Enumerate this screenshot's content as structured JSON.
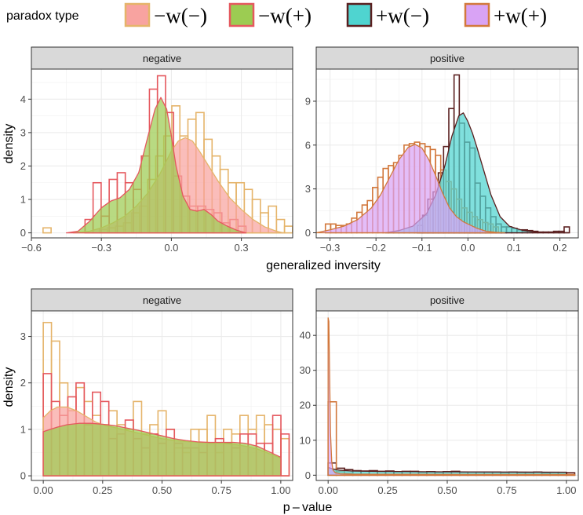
{
  "legend": {
    "title": "paradox type",
    "items": [
      {
        "label": "−w(−)",
        "fill": "#f8a3a0",
        "stroke": "#e5b46a"
      },
      {
        "label": "−w(+)",
        "fill": "#9ccc52",
        "stroke": "#e5585e"
      },
      {
        "label": "+w(−)",
        "fill": "#4fd4d0",
        "stroke": "#5a1f1f"
      },
      {
        "label": "+w(+)",
        "fill": "#d9a3f5",
        "stroke": "#d2783c"
      }
    ]
  },
  "axes": {
    "top_xlabel": "generalized inversity",
    "bottom_xlabel": "p – value",
    "ylabel": "density"
  },
  "chart_data": [
    {
      "type": "histogram+density",
      "panel": "negative",
      "row": "generalized inversity",
      "xlim": [
        -0.6,
        0.52
      ],
      "ylim": [
        -0.15,
        4.9
      ],
      "xticks": [
        -0.6,
        -0.3,
        0.0,
        0.3
      ],
      "xtick_labels": [
        "−0.6",
        "−0.3",
        "0.0",
        "0.3"
      ],
      "yticks": [
        0,
        1,
        2,
        3,
        4
      ],
      "xgrid_minor": [
        -0.45,
        -0.15,
        0.15,
        0.45
      ],
      "ygrid_minor": [
        0.5,
        1.5,
        2.5,
        3.5,
        4.5
      ],
      "series": [
        {
          "name": "−w(−)",
          "fill": "#f8a3a0",
          "stroke": "#e5b46a",
          "density_fill": "#f8a3a0",
          "bin_start": -0.55,
          "bin_width": 0.0345,
          "hist": [
            0.15,
            0,
            0,
            0,
            0,
            0,
            0,
            0.1,
            0.15,
            0.2,
            0.3,
            0.6,
            0.8,
            1.6,
            2.3,
            2.9,
            3.8,
            2.9,
            3.4,
            3.6,
            2.8,
            2.3,
            1.9,
            1.5,
            1.5,
            1.3,
            1.0,
            0.6,
            0.8,
            0.4,
            0.2,
            0.1,
            0.15
          ],
          "density_x": [
            -0.42,
            -0.35,
            -0.3,
            -0.25,
            -0.2,
            -0.15,
            -0.1,
            -0.05,
            0.0,
            0.03,
            0.06,
            0.09,
            0.12,
            0.16,
            0.2,
            0.25,
            0.3,
            0.35,
            0.4,
            0.45,
            0.48
          ],
          "density_y": [
            0,
            0.05,
            0.15,
            0.3,
            0.5,
            0.8,
            1.2,
            1.75,
            2.45,
            2.75,
            2.85,
            2.75,
            2.45,
            2.0,
            1.55,
            1.05,
            0.7,
            0.4,
            0.18,
            0.05,
            0
          ]
        },
        {
          "name": "−w(+)",
          "fill": "#9ccc52",
          "stroke": "#e5585e",
          "density_fill": "#9ccc52",
          "bin_start": -0.37,
          "bin_width": 0.0345,
          "hist": [
            0.4,
            1.5,
            0.5,
            1.6,
            1.8,
            1.5,
            1.3,
            2.3,
            4.3,
            4.7,
            3.6,
            1.7,
            1.1,
            0.8,
            0.8,
            0.7,
            0.6,
            0.3,
            0.4,
            0.2
          ],
          "density_x": [
            -0.45,
            -0.4,
            -0.35,
            -0.3,
            -0.26,
            -0.22,
            -0.18,
            -0.14,
            -0.1,
            -0.07,
            -0.045,
            -0.02,
            0.0,
            0.02,
            0.05,
            0.08,
            0.11,
            0.14,
            0.17,
            0.2,
            0.24,
            0.28,
            0.32
          ],
          "density_y": [
            0,
            0.05,
            0.35,
            0.75,
            0.95,
            1.05,
            1.3,
            1.8,
            2.9,
            3.7,
            4.05,
            3.7,
            2.9,
            2.0,
            1.1,
            0.7,
            0.65,
            0.7,
            0.55,
            0.35,
            0.2,
            0.08,
            0
          ]
        }
      ]
    },
    {
      "type": "histogram+density",
      "panel": "positive",
      "row": "generalized inversity",
      "xlim": [
        -0.33,
        0.24
      ],
      "ylim": [
        -0.35,
        11.2
      ],
      "xticks": [
        -0.3,
        -0.2,
        -0.1,
        0.0,
        0.1,
        0.2
      ],
      "xtick_labels": [
        "−0.3",
        "−0.2",
        "−0.1",
        "0.0",
        "0.1",
        "0.2"
      ],
      "yticks": [
        0,
        3,
        6,
        9
      ],
      "xgrid_minor": [
        -0.25,
        -0.15,
        -0.05,
        0.05,
        0.15
      ],
      "ygrid_minor": [
        1.5,
        4.5,
        7.5,
        10.5
      ],
      "series": [
        {
          "name": "+w(−)",
          "fill": "#4fd4d0",
          "stroke": "#5a1f1f",
          "density_fill": "#4fd4d0",
          "bin_start": -0.11,
          "bin_width": 0.0114,
          "hist": [
            0.5,
            1.2,
            2.3,
            2.8,
            4.1,
            5.9,
            8.5,
            10.8,
            7.5,
            6.2,
            5.8,
            3.4,
            2.5,
            1.7,
            1.1,
            0.6,
            0.4,
            0.4,
            0.3,
            0.2,
            0.2,
            0.15,
            0.1,
            0.05,
            0.05,
            0.05,
            0.1,
            0.1,
            0.4
          ],
          "density_x": [
            -0.18,
            -0.15,
            -0.12,
            -0.09,
            -0.07,
            -0.05,
            -0.035,
            -0.02,
            -0.01,
            0.0,
            0.01,
            0.02,
            0.035,
            0.05,
            0.07,
            0.09,
            0.12,
            0.15,
            0.18,
            0.22
          ],
          "density_y": [
            0,
            0.15,
            0.45,
            1.3,
            2.6,
            4.6,
            6.6,
            8.0,
            8.2,
            7.6,
            6.8,
            5.8,
            4.2,
            2.6,
            1.1,
            0.45,
            0.15,
            0.05,
            0.02,
            0
          ]
        },
        {
          "name": "+w(+)",
          "fill": "#d9a3f5",
          "stroke": "#d2783c",
          "density_fill": "#d9a3f5",
          "bin_start": -0.31,
          "bin_width": 0.0114,
          "hist": [
            0.6,
            0.6,
            0.5,
            0.5,
            0.6,
            1.0,
            1.4,
            1.9,
            2.2,
            3.1,
            3.8,
            4.4,
            4.6,
            4.8,
            5.3,
            6.0,
            6.1,
            6.2,
            6.1,
            5.9,
            5.7,
            5.3,
            4.3,
            3.5,
            3.0,
            2.3,
            1.7,
            1.4,
            1.1,
            0.9,
            0.7,
            0.6,
            0.4
          ],
          "density_x": [
            -0.33,
            -0.3,
            -0.27,
            -0.24,
            -0.21,
            -0.19,
            -0.17,
            -0.15,
            -0.13,
            -0.115,
            -0.1,
            -0.085,
            -0.07,
            -0.055,
            -0.04,
            -0.025,
            -0.01,
            0.0,
            0.02,
            0.04,
            0.06,
            0.08
          ],
          "density_y": [
            0,
            0.2,
            0.45,
            0.9,
            1.7,
            2.6,
            3.8,
            5.0,
            5.85,
            6.05,
            5.8,
            5.0,
            3.9,
            2.7,
            1.7,
            1.1,
            0.75,
            0.6,
            0.3,
            0.1,
            0.03,
            0
          ]
        }
      ]
    },
    {
      "type": "histogram+density",
      "panel": "negative",
      "row": "p-value",
      "xlim": [
        -0.05,
        1.05
      ],
      "ylim": [
        -0.1,
        3.55
      ],
      "xticks": [
        0.0,
        0.25,
        0.5,
        0.75,
        1.0
      ],
      "xtick_labels": [
        "0.00",
        "0.25",
        "0.50",
        "0.75",
        "1.00"
      ],
      "yticks": [
        0,
        1,
        2,
        3
      ],
      "xgrid_minor": [
        0.125,
        0.375,
        0.625,
        0.875
      ],
      "ygrid_minor": [
        0.5,
        1.5,
        2.5,
        3.5
      ],
      "series": [
        {
          "name": "−w(−)",
          "fill": "#f8a3a0",
          "stroke": "#e5b46a",
          "density_fill": "#f8a3a0",
          "bin_start": 0.0,
          "bin_width": 0.0345,
          "hist": [
            3.3,
            2.9,
            2.0,
            1.4,
            1.9,
            1.6,
            1.3,
            1.1,
            1.4,
            1.1,
            1.0,
            1.6,
            0.9,
            1.1,
            1.4,
            1.0,
            0.6,
            0.5,
            1.0,
            1.0,
            1.3,
            0.5,
            1.0,
            0.9,
            1.3,
            1.0,
            1.3,
            1.1,
            1.0,
            0.8
          ],
          "density_x": [
            0.0,
            0.03,
            0.06,
            0.1,
            0.14,
            0.18,
            0.22,
            0.26,
            0.3,
            0.35,
            0.4,
            0.45,
            0.5,
            0.55,
            0.6,
            0.65,
            0.7,
            0.75,
            0.8,
            0.85,
            0.9,
            0.95,
            1.0
          ],
          "density_y": [
            1.25,
            1.4,
            1.48,
            1.48,
            1.4,
            1.28,
            1.16,
            1.08,
            1.04,
            0.98,
            0.92,
            0.86,
            0.8,
            0.76,
            0.74,
            0.72,
            0.71,
            0.7,
            0.68,
            0.64,
            0.58,
            0.48,
            0.38
          ]
        },
        {
          "name": "−w(+)",
          "fill": "#9ccc52",
          "stroke": "#e5585e",
          "density_fill": "#9ccc52",
          "bin_start": 0.0,
          "bin_width": 0.0345,
          "hist": [
            2.2,
            1.6,
            1.3,
            1.7,
            2.0,
            1.1,
            1.8,
            1.6,
            0.8,
            0.9,
            1.2,
            0.8,
            0.6,
            0.9,
            0.7,
            1.0,
            0.7,
            0.6,
            0.6,
            0.5,
            0.7,
            0.8,
            0.7,
            0.6,
            0.9,
            0.9,
            0.7,
            0.7,
            1.3,
            0.9
          ],
          "density_x": [
            0.0,
            0.03,
            0.06,
            0.1,
            0.15,
            0.2,
            0.25,
            0.3,
            0.35,
            0.4,
            0.45,
            0.5,
            0.55,
            0.6,
            0.65,
            0.7,
            0.75,
            0.8,
            0.85,
            0.9,
            0.95,
            1.0
          ],
          "density_y": [
            0.95,
            1.0,
            1.05,
            1.1,
            1.13,
            1.13,
            1.11,
            1.08,
            1.03,
            0.98,
            0.92,
            0.86,
            0.8,
            0.76,
            0.73,
            0.72,
            0.72,
            0.72,
            0.7,
            0.64,
            0.52,
            0.4
          ]
        }
      ]
    },
    {
      "type": "histogram+density",
      "panel": "positive",
      "row": "p-value",
      "xlim": [
        -0.05,
        1.05
      ],
      "ylim": [
        -1.5,
        47.0
      ],
      "xticks": [
        0.0,
        0.25,
        0.5,
        0.75,
        1.0
      ],
      "xtick_labels": [
        "0.00",
        "0.25",
        "0.50",
        "0.75",
        "1.00"
      ],
      "yticks": [
        0,
        10,
        20,
        30,
        40
      ],
      "xgrid_minor": [
        0.125,
        0.375,
        0.625,
        0.875
      ],
      "ygrid_minor": [
        5,
        15,
        25,
        35,
        45
      ],
      "series": [
        {
          "name": "+w(−)",
          "fill": "#4fd4d0",
          "stroke": "#5a1f1f",
          "density_fill": "#4fd4d0",
          "bin_start": 0.0,
          "bin_width": 0.0345,
          "hist": [
            3.5,
            2.0,
            1.6,
            1.3,
            1.2,
            1.3,
            1.1,
            1.2,
            1.0,
            1.1,
            1.1,
            0.9,
            1.0,
            0.9,
            1.0,
            1.1,
            0.9,
            0.9,
            0.9,
            0.9,
            0.9,
            0.8,
            0.9,
            0.8,
            0.8,
            0.9,
            0.7,
            0.8,
            0.8,
            0.7
          ],
          "density_x": [
            0.0,
            0.02,
            0.05,
            0.1,
            0.2,
            0.4,
            0.6,
            0.8,
            1.0
          ],
          "density_y": [
            2.2,
            1.8,
            1.4,
            1.2,
            1.1,
            1.0,
            0.95,
            0.9,
            0.85
          ]
        },
        {
          "name": "+w(+)",
          "fill": "#d9a3f5",
          "stroke": "#d2783c",
          "density_fill": "#d9a3f5",
          "bin_start": 0.0,
          "bin_width": 0.0345,
          "hist": [
            21.0,
            1.0,
            0.5,
            0.3,
            0.3,
            0.2,
            0.2,
            0.2,
            0.2,
            0.2,
            0.2,
            0.2,
            0.2,
            0.2,
            0.2,
            0.2,
            0.2,
            0.2,
            0.2,
            0.2,
            0.2,
            0.2,
            0.2,
            0.2,
            0.2,
            0.2,
            0.2,
            0.2,
            0.2,
            0.2
          ],
          "density_x": [
            0.0,
            0.003,
            0.006,
            0.01,
            0.015,
            0.02,
            0.03,
            0.05,
            0.1,
            0.3,
            0.6,
            1.0
          ],
          "density_y": [
            45.0,
            44.0,
            30.0,
            12.0,
            4.0,
            1.5,
            0.7,
            0.4,
            0.3,
            0.25,
            0.2,
            0.2
          ]
        }
      ]
    }
  ]
}
